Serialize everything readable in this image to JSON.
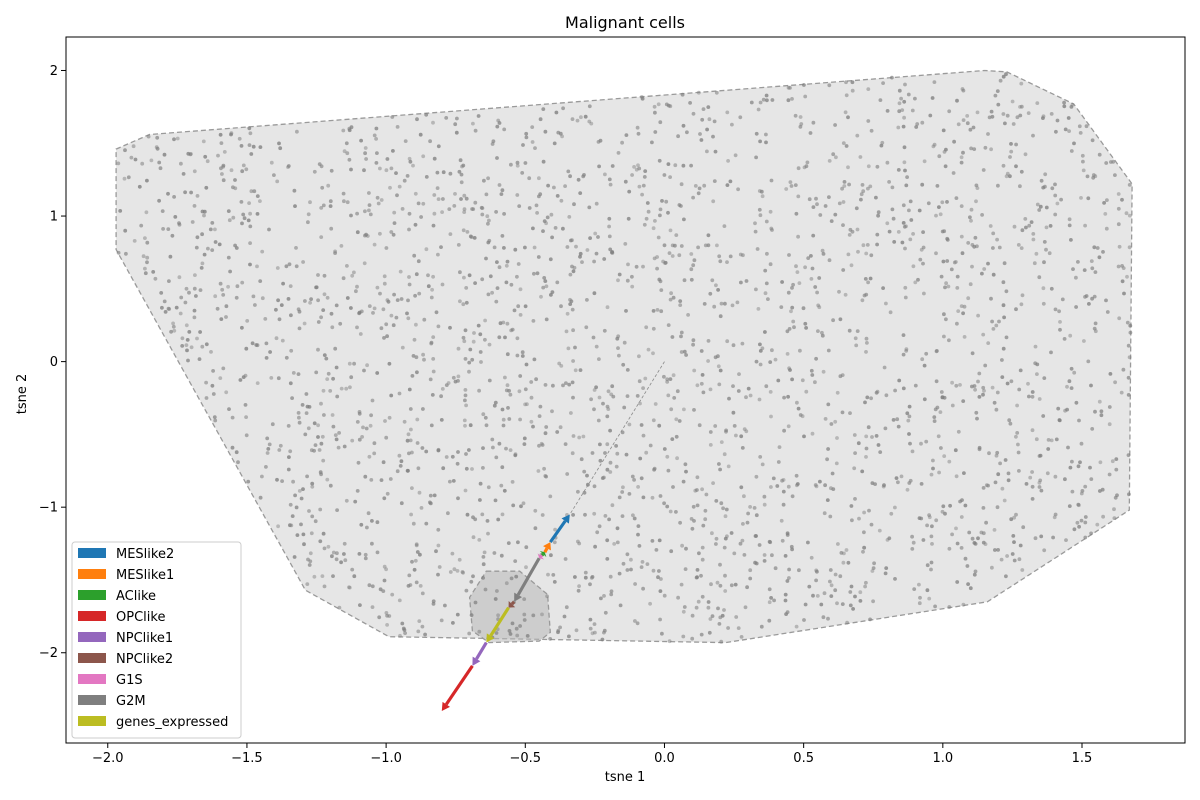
{
  "chart_data": {
    "type": "scatter",
    "title": "Malignant cells",
    "xlabel": "tsne 1",
    "ylabel": "tsne 2",
    "xlim": [
      -2.15,
      1.87
    ],
    "ylim": [
      -2.62,
      2.23
    ],
    "xticks": [
      -2.0,
      -1.5,
      -1.0,
      -0.5,
      0.0,
      0.5,
      1.0,
      1.5
    ],
    "xtick_labels": [
      "−2.0",
      "−1.5",
      "−1.0",
      "−0.5",
      "0.0",
      "0.5",
      "1.0",
      "1.5"
    ],
    "yticks": [
      -2,
      -1,
      0,
      1,
      2
    ],
    "ytick_labels": [
      "−2",
      "−1",
      "0",
      "1",
      "2"
    ],
    "grid": false,
    "legend_placement": "lower left",
    "point_color": "#7f7f7f",
    "hull_fill": "#dddddd",
    "hull_outer": [
      [
        -1.97,
        1.46
      ],
      [
        -1.85,
        1.56
      ],
      [
        1.15,
        2.0
      ],
      [
        1.23,
        1.99
      ],
      [
        1.47,
        1.77
      ],
      [
        1.68,
        1.22
      ],
      [
        1.67,
        -1.02
      ],
      [
        1.16,
        -1.65
      ],
      [
        0.22,
        -1.93
      ],
      [
        -0.99,
        -1.89
      ],
      [
        -1.29,
        -1.57
      ],
      [
        -1.97,
        0.77
      ]
    ],
    "hull_inner": [
      [
        -0.64,
        -1.44
      ],
      [
        -0.52,
        -1.44
      ],
      [
        -0.42,
        -1.6
      ],
      [
        -0.41,
        -1.86
      ],
      [
        -0.45,
        -1.92
      ],
      [
        -0.63,
        -1.93
      ],
      [
        -0.69,
        -1.85
      ],
      [
        -0.7,
        -1.62
      ]
    ],
    "arrow_origin": [
      0.0,
      0.0
    ],
    "series": [
      {
        "name": "MESlike2",
        "color": "#1f77b4",
        "start": [
          -0.41,
          -1.24
        ],
        "end": [
          -0.34,
          -1.05
        ]
      },
      {
        "name": "MESlike1",
        "color": "#ff7f0e",
        "start": [
          -0.43,
          -1.31
        ],
        "end": [
          -0.41,
          -1.24
        ]
      },
      {
        "name": "AClike",
        "color": "#2ca02c",
        "start": [
          -0.44,
          -1.33
        ],
        "end": [
          -0.43,
          -1.31
        ]
      },
      {
        "name": "OPClike",
        "color": "#d62728",
        "start": [
          -0.69,
          -2.09
        ],
        "end": [
          -0.8,
          -2.4
        ]
      },
      {
        "name": "NPClike1",
        "color": "#9467bd",
        "start": [
          -0.64,
          -1.93
        ],
        "end": [
          -0.69,
          -2.09
        ]
      },
      {
        "name": "NPClike2",
        "color": "#8c564b",
        "start": [
          -0.54,
          -1.65
        ],
        "end": [
          -0.56,
          -1.69
        ]
      },
      {
        "name": "G1S",
        "color": "#e377c2",
        "start": [
          -0.44,
          -1.33
        ],
        "end": [
          -0.45,
          -1.35
        ]
      },
      {
        "name": "G2M",
        "color": "#7f7f7f",
        "start": [
          -0.45,
          -1.35
        ],
        "end": [
          -0.54,
          -1.65
        ]
      },
      {
        "name": "genes_expressed",
        "color": "#bcbd22",
        "start": [
          -0.56,
          -1.69
        ],
        "end": [
          -0.64,
          -1.93
        ]
      }
    ]
  }
}
